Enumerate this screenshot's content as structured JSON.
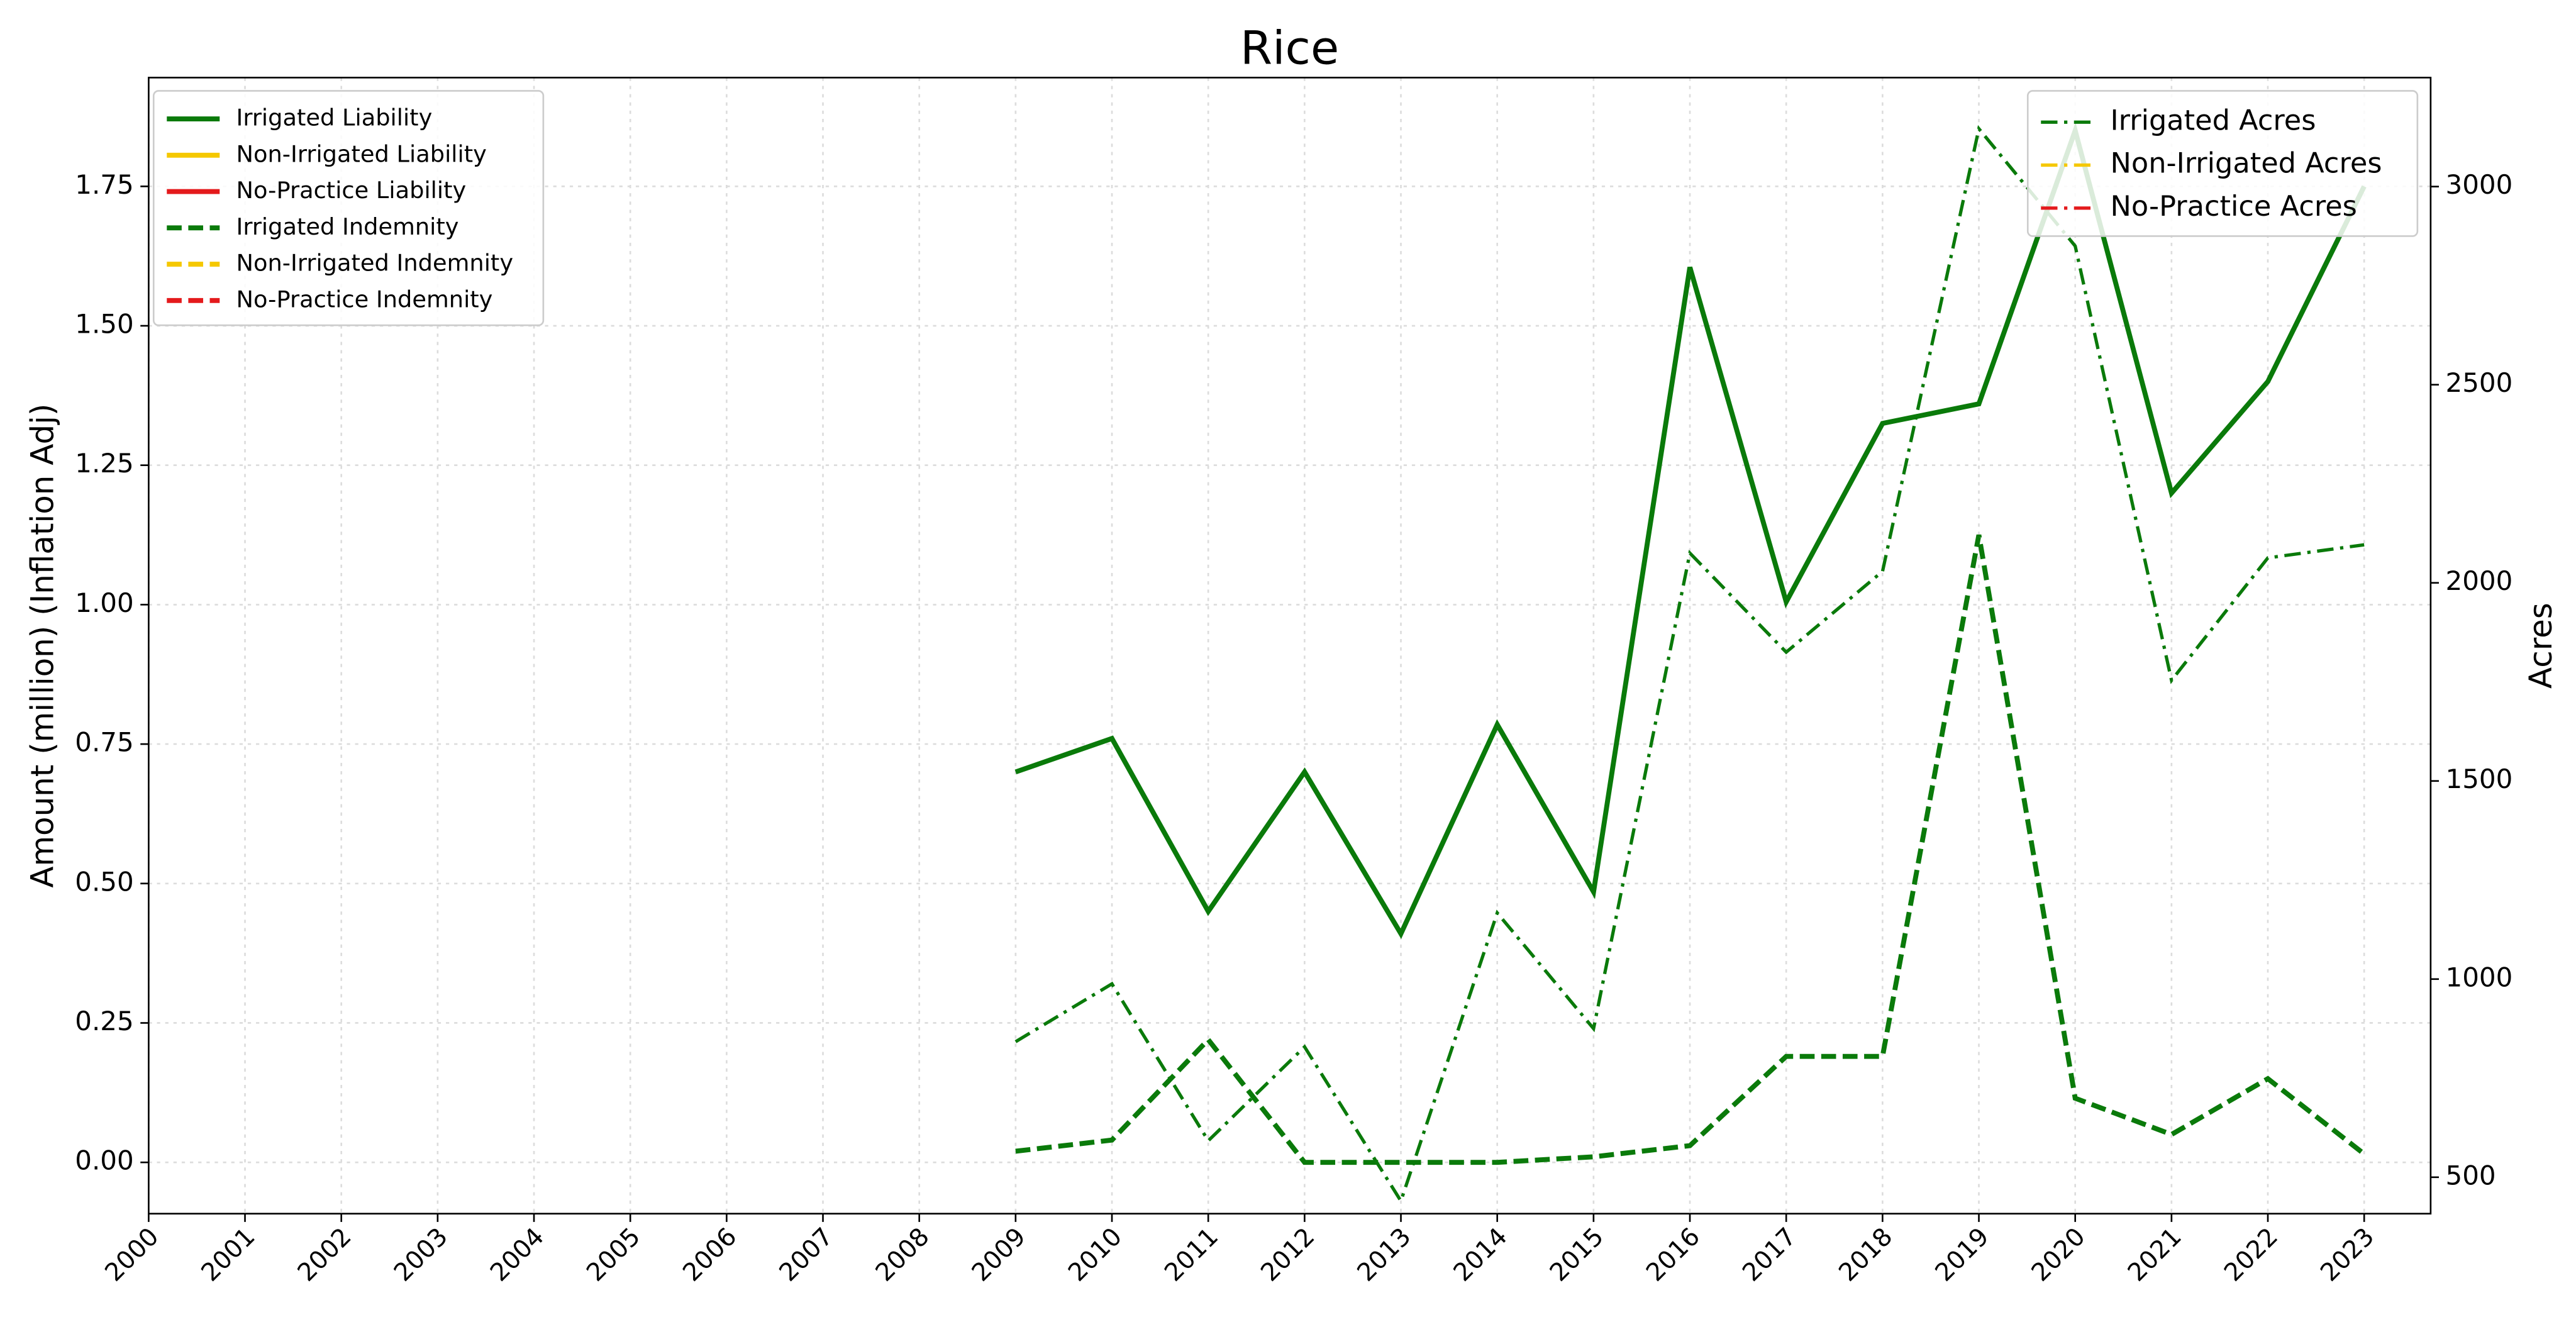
{
  "chart_data": {
    "type": "line",
    "title": "Rice",
    "ylabel": "Amount (million) (Inflation Adj)",
    "y2label": "Acres",
    "x": [
      2009,
      2010,
      2011,
      2012,
      2013,
      2014,
      2015,
      2016,
      2017,
      2018,
      2019,
      2020,
      2021,
      2022,
      2023
    ],
    "xlim": [
      2000,
      2023.69
    ],
    "xticks": [
      2000,
      2001,
      2002,
      2003,
      2004,
      2005,
      2006,
      2007,
      2008,
      2009,
      2010,
      2011,
      2012,
      2013,
      2014,
      2015,
      2016,
      2017,
      2018,
      2019,
      2020,
      2021,
      2022,
      2023
    ],
    "ylim": [
      -0.092,
      1.945
    ],
    "yticks": [
      {
        "value": 0,
        "label": "0.00"
      },
      {
        "value": 0.25,
        "label": "0.25"
      },
      {
        "value": 0.5,
        "label": "0.50"
      },
      {
        "value": 0.75,
        "label": "0.75"
      },
      {
        "value": 1,
        "label": "1.00"
      },
      {
        "value": 1.25,
        "label": "1.25"
      },
      {
        "value": 1.5,
        "label": "1.50"
      },
      {
        "value": 1.75,
        "label": "1.75"
      }
    ],
    "y2lim": [
      408,
      3275
    ],
    "y2ticks": [
      500,
      1000,
      1500,
      2000,
      2500,
      3000
    ],
    "grid": true,
    "legend": "upper left",
    "legend2": "upper right",
    "series": [
      {
        "name": "Irrigated Liability",
        "color": "#0a7a0a",
        "dash": "solid",
        "values": [
          0.7,
          0.76,
          0.45,
          0.7,
          0.41,
          0.785,
          0.485,
          1.605,
          1.005,
          1.325,
          1.36,
          1.85,
          1.2,
          1.4,
          1.75
        ]
      },
      {
        "name": "Non-Irrigated Liability",
        "color": "#f5c800",
        "dash": "solid",
        "values": [
          null,
          null,
          null,
          null,
          null,
          null,
          null,
          null,
          null,
          null,
          null,
          null,
          null,
          null,
          null
        ]
      },
      {
        "name": "No-Practice Liability",
        "color": "#e41a1c",
        "dash": "solid",
        "values": [
          null,
          null,
          null,
          null,
          null,
          null,
          null,
          null,
          null,
          null,
          null,
          null,
          null,
          null,
          null
        ]
      },
      {
        "name": "Irrigated Indemnity",
        "color": "#0a7a0a",
        "dash": "dashed",
        "values": [
          0.02,
          0.04,
          0.22,
          0.0,
          0.0,
          0.0,
          0.01,
          0.03,
          0.19,
          0.19,
          1.125,
          0.115,
          0.05,
          0.15,
          0.015
        ]
      },
      {
        "name": "Non-Irrigated Indemnity",
        "color": "#f5c800",
        "dash": "dashed",
        "values": [
          null,
          null,
          null,
          null,
          null,
          null,
          null,
          null,
          null,
          null,
          null,
          null,
          null,
          null,
          null
        ]
      },
      {
        "name": "No-Practice Indemnity",
        "color": "#e41a1c",
        "dash": "dashed",
        "values": [
          null,
          null,
          null,
          null,
          null,
          null,
          null,
          null,
          null,
          null,
          null,
          null,
          null,
          null,
          null
        ]
      },
      {
        "name": "Irrigated Acres",
        "color": "#0a7a0a",
        "dash": "dashdot",
        "axis": "y2",
        "values": [
          842,
          988,
          592,
          829,
          440,
          1167,
          875,
          2075,
          1825,
          2029,
          3146,
          2850,
          1754,
          2063,
          2096
        ]
      },
      {
        "name": "Non-Irrigated Acres",
        "color": "#f5c800",
        "dash": "dashdot",
        "axis": "y2",
        "values": [
          null,
          null,
          null,
          null,
          null,
          null,
          null,
          null,
          null,
          null,
          null,
          null,
          null,
          null,
          null
        ]
      },
      {
        "name": "No-Practice Acres",
        "color": "#e41a1c",
        "dash": "dashdot",
        "axis": "y2",
        "values": [
          null,
          null,
          null,
          null,
          null,
          null,
          null,
          null,
          null,
          null,
          null,
          null,
          null,
          null,
          null
        ]
      }
    ]
  }
}
